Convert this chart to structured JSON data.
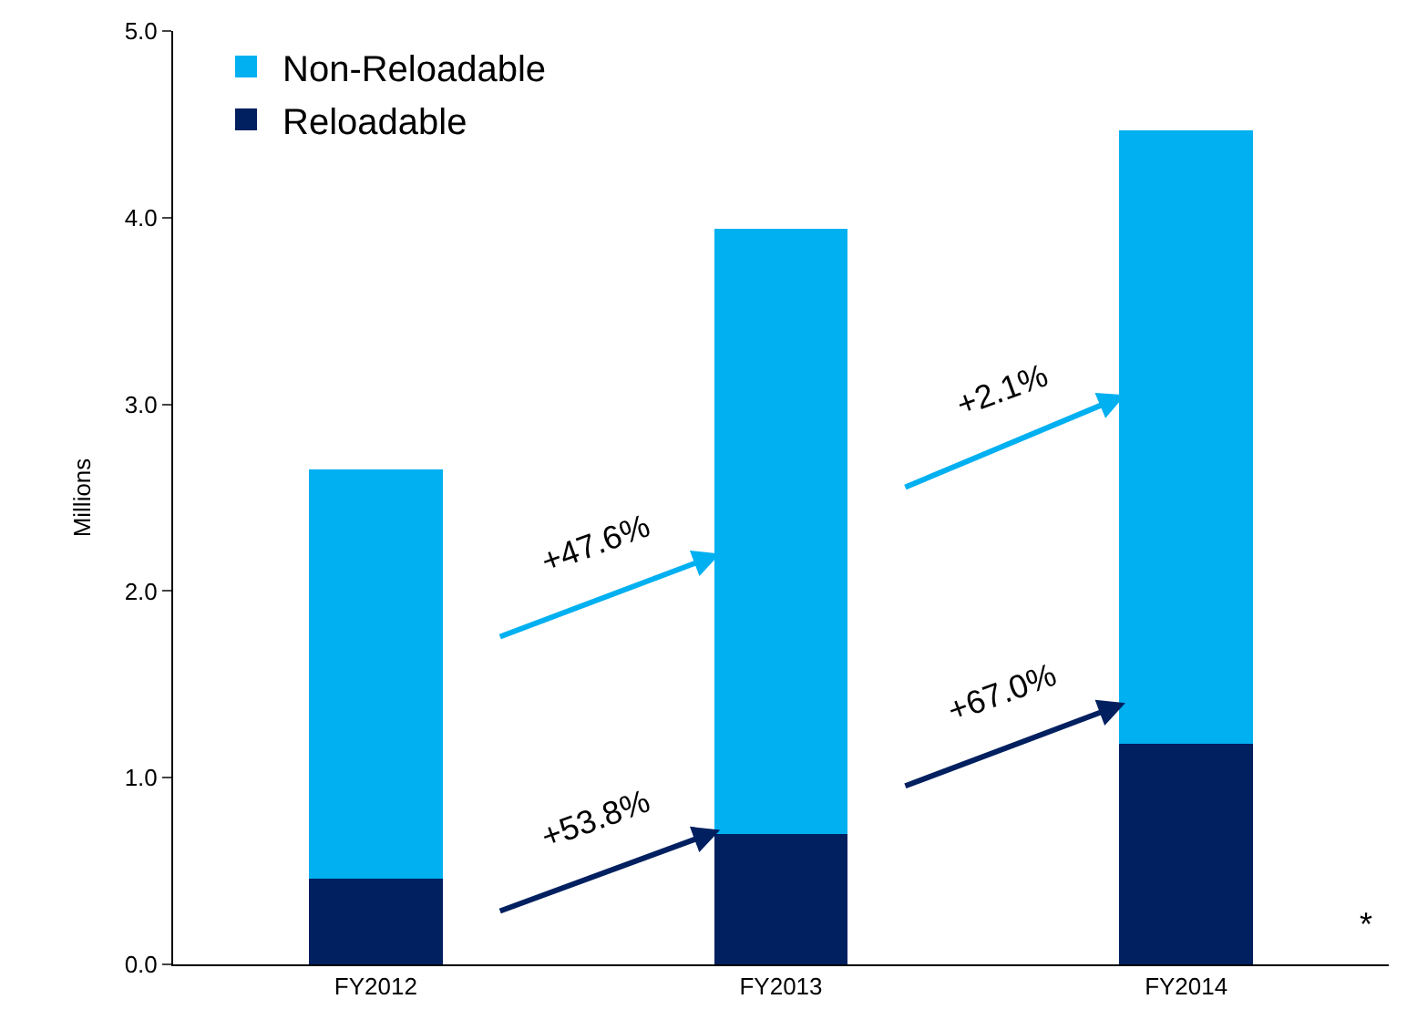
{
  "chart_data": {
    "type": "bar",
    "stacked": true,
    "ylabel": "Millions",
    "categories": [
      "FY2012",
      "FY2013",
      "FY2014"
    ],
    "series": [
      {
        "name": "Reloadable",
        "color": "#002060",
        "values": [
          0.46,
          0.7,
          1.18
        ]
      },
      {
        "name": "Non-Reloadable",
        "color": "#00b0f0",
        "values": [
          2.19,
          3.24,
          3.29
        ]
      }
    ],
    "ylim": [
      0,
      5
    ],
    "yticks": [
      {
        "value": 0,
        "label": "0.0"
      },
      {
        "value": 1,
        "label": "1.0"
      },
      {
        "value": 2,
        "label": "2.0"
      },
      {
        "value": 3,
        "label": "3.0"
      },
      {
        "value": 4,
        "label": "4.0"
      },
      {
        "value": 5,
        "label": "5.0"
      }
    ],
    "legend": "top left",
    "annotations": [
      "+47.6%",
      "+53.8%",
      "+2.1%",
      "+67.0%",
      "*"
    ]
  }
}
